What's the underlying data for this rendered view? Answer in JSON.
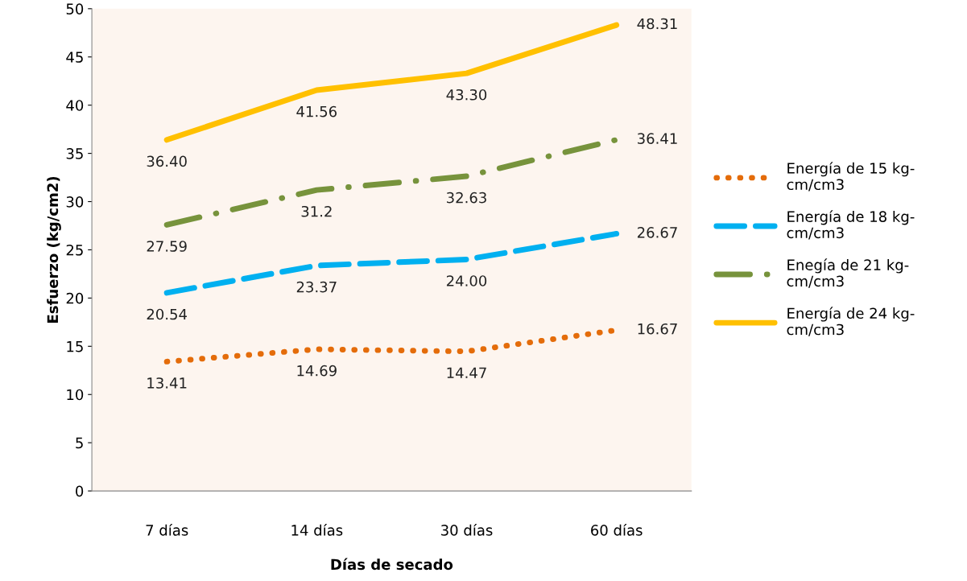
{
  "chart_data": {
    "type": "line",
    "xlabel": "Días de secado",
    "ylabel": "Esfuerzo (kg/cm2)",
    "categories": [
      "7 días",
      "14 días",
      "30 días",
      "60 días"
    ],
    "ylim": [
      0,
      50
    ],
    "yticks": [
      0,
      5,
      10,
      15,
      20,
      25,
      30,
      35,
      40,
      45,
      50
    ],
    "grid": false,
    "legend": "right",
    "series": [
      {
        "name": "Energía de 15 kg-\ncm/cm3",
        "color": "#e46c0a",
        "line_style": "dotted",
        "values": [
          13.41,
          14.69,
          14.47,
          16.67
        ],
        "value_labels": [
          "13.41",
          "14.69",
          "14.47",
          "16.67"
        ]
      },
      {
        "name": "Energía de 18 kg-\ncm/cm3",
        "color": "#00b0f0",
        "line_style": "dashed",
        "values": [
          20.54,
          23.37,
          24.0,
          26.67
        ],
        "value_labels": [
          "20.54",
          "23.37",
          "24.00",
          "26.67"
        ]
      },
      {
        "name": "Enegía de 21 kg-\ncm/cm3",
        "color": "#77933c",
        "line_style": "dashdot",
        "values": [
          27.59,
          31.2,
          32.63,
          36.41
        ],
        "value_labels": [
          "27.59",
          "31.2",
          "32.63",
          "36.41"
        ]
      },
      {
        "name": "Energía de 24 kg-\ncm/cm3",
        "color": "#ffc000",
        "line_style": "solid",
        "values": [
          36.4,
          41.56,
          43.3,
          48.31
        ],
        "value_labels": [
          "36.40",
          "41.56",
          "43.30",
          "48.31"
        ]
      }
    ]
  }
}
